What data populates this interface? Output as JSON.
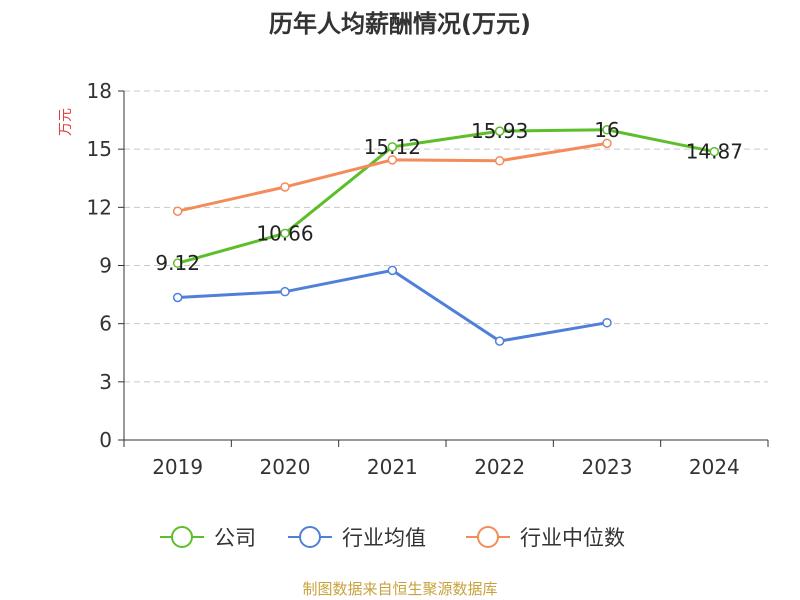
{
  "chart_data": {
    "type": "line",
    "title": "历年人均薪酬情况(万元)",
    "ylabel": "万元",
    "xlabel": "",
    "categories": [
      "2019",
      "2020",
      "2021",
      "2022",
      "2023",
      "2024"
    ],
    "ylim": [
      0,
      18
    ],
    "yticks": [
      0,
      3,
      6,
      9,
      12,
      15,
      18
    ],
    "grid": true,
    "legend_position": "bottom",
    "series": [
      {
        "name": "公司",
        "values": [
          9.12,
          10.66,
          15.12,
          15.93,
          16,
          14.87
        ],
        "labels": [
          "9.12",
          "10.66",
          "15.12",
          "15.93",
          "16",
          "14.87"
        ],
        "color": "#5cbf2a"
      },
      {
        "name": "行业均值",
        "values": [
          7.35,
          7.65,
          8.75,
          5.1,
          6.05,
          null
        ],
        "color": "#4f80d9"
      },
      {
        "name": "行业中位数",
        "values": [
          11.8,
          13.05,
          14.45,
          14.4,
          15.3,
          null
        ],
        "color": "#f38b5a"
      }
    ],
    "ylabel_color": "#e04040"
  },
  "source_note": "制图数据来自恒生聚源数据库"
}
